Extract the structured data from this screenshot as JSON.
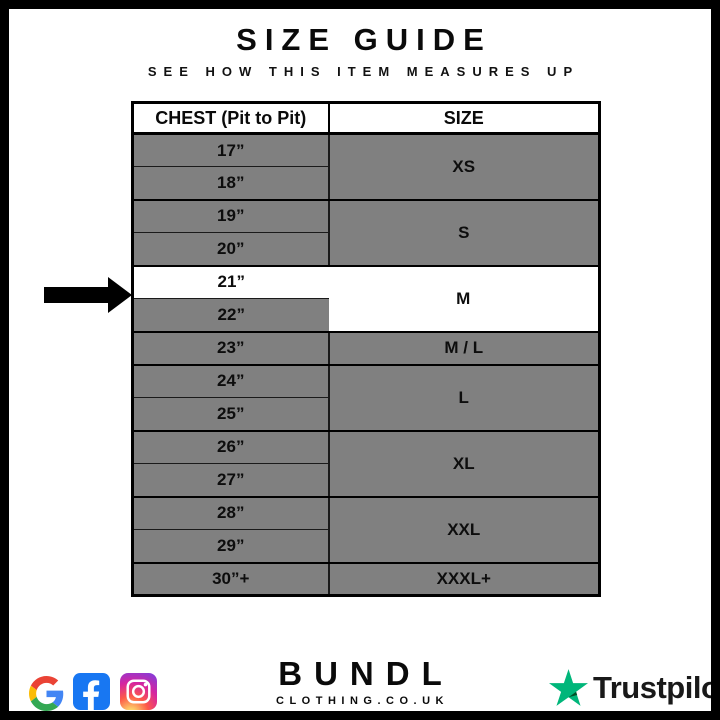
{
  "page": {
    "title": "SIZE GUIDE",
    "subtitle": "SEE HOW THIS ITEM MEASURES UP"
  },
  "table": {
    "headers": {
      "chest": "CHEST (Pit to Pit)",
      "size": "SIZE"
    },
    "groups": [
      {
        "size": "XS",
        "measurements": [
          "17”",
          "18”"
        ],
        "highlighted": false
      },
      {
        "size": "S",
        "measurements": [
          "19”",
          "20”"
        ],
        "highlighted": false
      },
      {
        "size": "M",
        "measurements": [
          "21”",
          "22”"
        ],
        "highlighted": true,
        "highlighted_measurement": "21”"
      },
      {
        "size": "M / L",
        "measurements": [
          "23”"
        ],
        "highlighted": false
      },
      {
        "size": "L",
        "measurements": [
          "24”",
          "25”"
        ],
        "highlighted": false
      },
      {
        "size": "XL",
        "measurements": [
          "26”",
          "27”"
        ],
        "highlighted": false
      },
      {
        "size": "XXL",
        "measurements": [
          "28”",
          "29”"
        ],
        "highlighted": false
      },
      {
        "size": "XXXL+",
        "measurements": [
          "30”+"
        ],
        "highlighted": false
      }
    ],
    "highlight_note": "arrow points at 21 inch row, size M highlighted white"
  },
  "footer": {
    "brand": {
      "name": "BUNDL",
      "domain": "CLOTHING.CO.UK"
    },
    "social_icons": [
      "google-icon",
      "facebook-icon",
      "instagram-icon"
    ],
    "trustpilot_label": "Trustpilot"
  },
  "colors": {
    "row_gray": "#808080",
    "highlight_white": "#ffffff",
    "border_black": "#000000",
    "facebook_blue": "#1877F2",
    "trustpilot_green": "#00B67A",
    "trustpilot_dark_green": "#005128",
    "google_red": "#EA4335",
    "google_blue": "#4285F4",
    "google_yellow": "#FBBC05",
    "google_green": "#34A853"
  }
}
